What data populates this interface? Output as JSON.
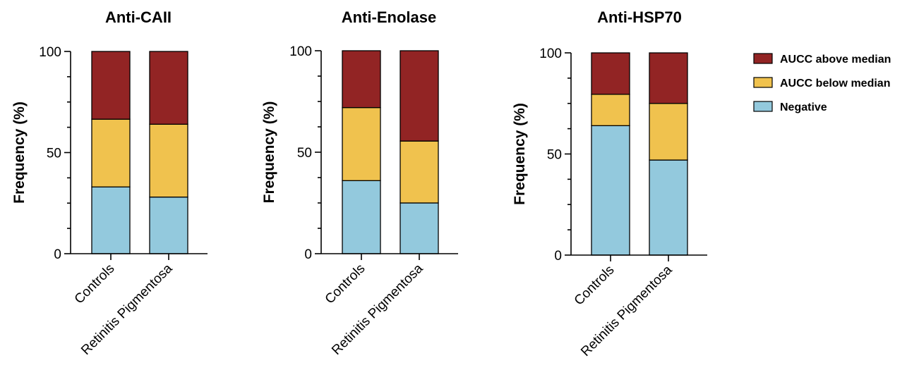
{
  "colors": {
    "above": "#922424",
    "below": "#F0C24E",
    "negative": "#93C9DD",
    "stroke": "#000000"
  },
  "legend": {
    "items": [
      {
        "key": "above",
        "label": "AUCC above median"
      },
      {
        "key": "below",
        "label": "AUCC below median"
      },
      {
        "key": "negative",
        "label": "Negative"
      }
    ]
  },
  "chart_data": [
    {
      "type": "bar",
      "stacked": true,
      "title": "Anti-CAII",
      "ylabel": "Frequency (%)",
      "ylim": [
        0,
        100
      ],
      "yticks": [
        "0",
        "50",
        "100"
      ],
      "categories": [
        "Controls",
        "Retinitis Pigmentosa"
      ],
      "series": [
        {
          "name": "Negative",
          "key": "negative",
          "values": [
            33,
            28
          ]
        },
        {
          "name": "AUCC below median",
          "key": "below",
          "values": [
            33.5,
            36
          ]
        },
        {
          "name": "AUCC above median",
          "key": "above",
          "values": [
            33.5,
            36
          ]
        }
      ]
    },
    {
      "type": "bar",
      "stacked": true,
      "title": "Anti-Enolase",
      "ylabel": "Frequency (%)",
      "ylim": [
        0,
        100
      ],
      "yticks": [
        "0",
        "50",
        "100"
      ],
      "categories": [
        "Controls",
        "Retinitis Pigmentosa"
      ],
      "series": [
        {
          "name": "Negative",
          "key": "negative",
          "values": [
            36,
            25
          ]
        },
        {
          "name": "AUCC below median",
          "key": "below",
          "values": [
            36,
            30.5
          ]
        },
        {
          "name": "AUCC above median",
          "key": "above",
          "values": [
            28,
            44.5
          ]
        }
      ]
    },
    {
      "type": "bar",
      "stacked": true,
      "title": "Anti-HSP70",
      "ylabel": "Frequency (%)",
      "ylim": [
        0,
        100
      ],
      "yticks": [
        "0",
        "50",
        "100"
      ],
      "categories": [
        "Controls",
        "Retinitis Pigmentosa"
      ],
      "series": [
        {
          "name": "Negative",
          "key": "negative",
          "values": [
            64,
            47
          ]
        },
        {
          "name": "AUCC below median",
          "key": "below",
          "values": [
            15.5,
            28
          ]
        },
        {
          "name": "AUCC above median",
          "key": "above",
          "values": [
            20.5,
            25
          ]
        }
      ]
    }
  ]
}
